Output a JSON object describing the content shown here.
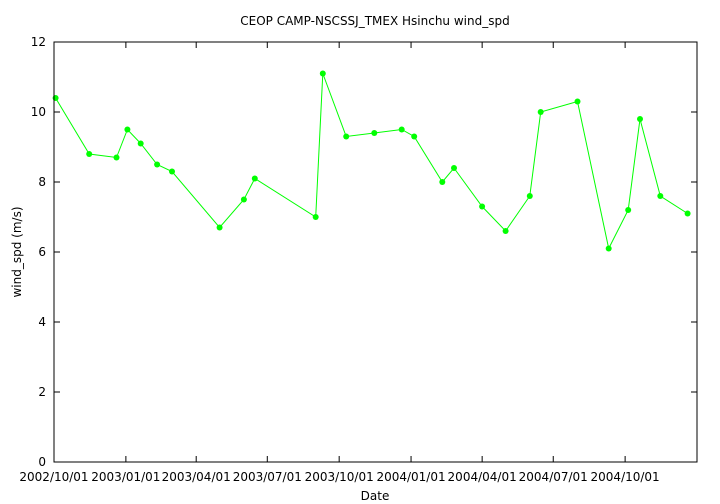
{
  "chart_data": {
    "type": "line",
    "title": "CEOP CAMP-NSCSSJ_TMEX Hsinchu  wind_spd",
    "xlabel": "Date",
    "ylabel": "wind_spd (m/s)",
    "ylim": [
      0,
      12
    ],
    "yticks": [
      0,
      2,
      4,
      6,
      8,
      10,
      12
    ],
    "xlim": [
      "2002-10-01",
      "2005-01-01"
    ],
    "xticks": [
      "2002-10-01",
      "2003-01-01",
      "2003-04-01",
      "2003-07-01",
      "2003-10-01",
      "2004-01-01",
      "2004-04-01",
      "2004-07-01",
      "2004-10-01"
    ],
    "xtick_labels": [
      "2002/10/01",
      "2003/01/01",
      "2003/04/01",
      "2003/07/01",
      "2003/10/01",
      "2004/01/01",
      "2004/04/01",
      "2004/07/01",
      "2004/10/01"
    ],
    "grid": false,
    "legend": "none",
    "series": [
      {
        "color": "#00ff00",
        "marker": "circle",
        "points": [
          [
            "2002-10-03",
            10.4
          ],
          [
            "2002-11-15",
            8.8
          ],
          [
            "2002-12-20",
            8.7
          ],
          [
            "2003-01-03",
            9.5
          ],
          [
            "2003-01-20",
            9.1
          ],
          [
            "2003-02-10",
            8.5
          ],
          [
            "2003-03-01",
            8.3
          ],
          [
            "2003-05-01",
            6.7
          ],
          [
            "2003-06-01",
            7.5
          ],
          [
            "2003-06-15",
            8.1
          ],
          [
            "2003-09-01",
            7.0
          ],
          [
            "2003-09-10",
            11.1
          ],
          [
            "2003-10-10",
            9.3
          ],
          [
            "2003-11-15",
            9.4
          ],
          [
            "2003-12-20",
            9.5
          ],
          [
            "2004-01-05",
            9.3
          ],
          [
            "2004-02-10",
            8.0
          ],
          [
            "2004-02-25",
            8.4
          ],
          [
            "2004-04-01",
            7.3
          ],
          [
            "2004-05-01",
            6.6
          ],
          [
            "2004-06-01",
            7.6
          ],
          [
            "2004-06-15",
            10.0
          ],
          [
            "2004-08-01",
            10.3
          ],
          [
            "2004-09-10",
            6.1
          ],
          [
            "2004-10-05",
            7.2
          ],
          [
            "2004-10-20",
            9.8
          ],
          [
            "2004-11-15",
            7.6
          ],
          [
            "2004-12-20",
            7.1
          ]
        ]
      }
    ]
  }
}
